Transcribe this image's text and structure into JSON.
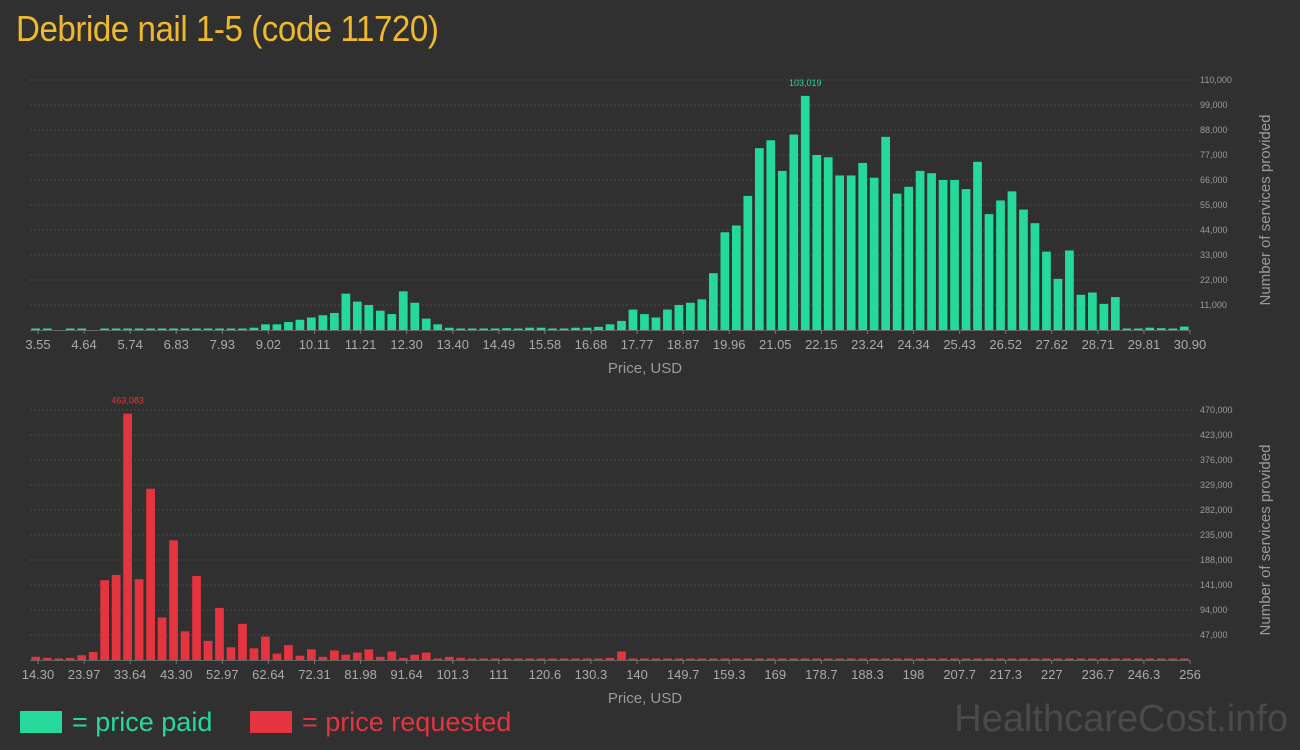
{
  "page": {
    "title": "Debride nail 1-5 (code 11720)"
  },
  "legend": {
    "paid_label": "= price paid",
    "requested_label": "= price requested"
  },
  "watermark": "HealthcareCost.info",
  "colors": {
    "paid": "#24d99a",
    "requested": "#e3343f",
    "title": "#f0b92d"
  },
  "chart_data": [
    {
      "type": "bar",
      "id": "paid",
      "xlabel": "Price, USD",
      "ylabel": "Number of services provided",
      "x_tick_labels": [
        "3.55",
        "4.64",
        "5.74",
        "6.83",
        "7.93",
        "9.02",
        "10.11",
        "11.21",
        "12.30",
        "13.40",
        "14.49",
        "15.58",
        "16.68",
        "17.77",
        "18.87",
        "19.96",
        "21.05",
        "22.15",
        "23.24",
        "24.34",
        "25.43",
        "26.52",
        "27.62",
        "28.71",
        "29.81",
        "30.90"
      ],
      "y_tick_labels": [
        "11,000",
        "22,000",
        "33,000",
        "44,000",
        "55,000",
        "66,000",
        "77,000",
        "88,000",
        "99,000",
        "110,000"
      ],
      "y_ticks": [
        11000,
        22000,
        33000,
        44000,
        55000,
        66000,
        77000,
        88000,
        99000,
        110000
      ],
      "ylim": [
        0,
        110000
      ],
      "peak_label": "103,019",
      "values": [
        300,
        300,
        0,
        300,
        300,
        0,
        300,
        300,
        300,
        300,
        300,
        300,
        300,
        300,
        300,
        300,
        300,
        400,
        600,
        1000,
        2500,
        2500,
        3500,
        4500,
        5500,
        6500,
        7500,
        16000,
        12500,
        11000,
        8500,
        7000,
        17000,
        12000,
        5000,
        2500,
        1000,
        600,
        400,
        400,
        600,
        800,
        600,
        1000,
        1000,
        600,
        600,
        1000,
        1000,
        1400,
        2500,
        4000,
        9000,
        7000,
        5500,
        9000,
        11000,
        12000,
        13500,
        25000,
        43000,
        46000,
        59000,
        80000,
        83500,
        70000,
        86000,
        103019,
        77000,
        76000,
        68000,
        68000,
        73500,
        67000,
        85000,
        60000,
        63000,
        70000,
        69000,
        66000,
        66000,
        62000,
        74000,
        51000,
        57000,
        61000,
        53000,
        47000,
        34500,
        22500,
        35000,
        15500,
        16500,
        11500,
        14500,
        600,
        300,
        1000,
        800,
        500,
        1500
      ],
      "grid": true
    },
    {
      "type": "bar",
      "id": "requested",
      "xlabel": "Price, USD",
      "ylabel": "Number of services provided",
      "x_tick_labels": [
        "14.30",
        "23.97",
        "33.64",
        "43.30",
        "52.97",
        "62.64",
        "72.31",
        "81.98",
        "91.64",
        "101.3",
        "111",
        "120.6",
        "130.3",
        "140",
        "149.7",
        "159.3",
        "169",
        "178.7",
        "188.3",
        "198",
        "207.7",
        "217.3",
        "227",
        "236.7",
        "246.3",
        "256"
      ],
      "y_tick_labels": [
        "47,000",
        "94,000",
        "141,000",
        "188,000",
        "235,000",
        "282,000",
        "329,000",
        "376,000",
        "423,000",
        "470,000"
      ],
      "y_ticks": [
        47000,
        94000,
        141000,
        188000,
        235000,
        282000,
        329000,
        376000,
        423000,
        470000
      ],
      "ylim": [
        0,
        470000
      ],
      "peak_label": "463,083",
      "values": [
        6000,
        4000,
        2000,
        4000,
        9000,
        15000,
        150000,
        160000,
        463083,
        152000,
        322000,
        80000,
        225000,
        54000,
        158000,
        36000,
        98000,
        24000,
        68000,
        22000,
        44000,
        12000,
        28000,
        8000,
        20000,
        6000,
        18000,
        10000,
        14000,
        20000,
        6000,
        16000,
        4000,
        10000,
        14000,
        2000,
        6000,
        4000,
        2000,
        2000,
        1000,
        2000,
        1500,
        1000,
        1000,
        1000,
        1000,
        1000,
        1000,
        1000,
        4000,
        16000,
        1000,
        1000,
        1000,
        2000,
        2000,
        1000,
        2000,
        1000,
        1000,
        1000,
        500,
        500,
        500,
        500,
        500,
        500,
        500,
        500,
        500,
        500,
        500,
        500,
        500,
        500,
        500,
        500,
        500,
        500,
        500,
        500,
        500,
        500,
        500,
        500,
        500,
        500,
        500,
        500,
        500,
        500,
        500,
        500,
        500,
        500,
        500,
        500,
        500,
        500,
        500
      ],
      "grid": true
    }
  ]
}
